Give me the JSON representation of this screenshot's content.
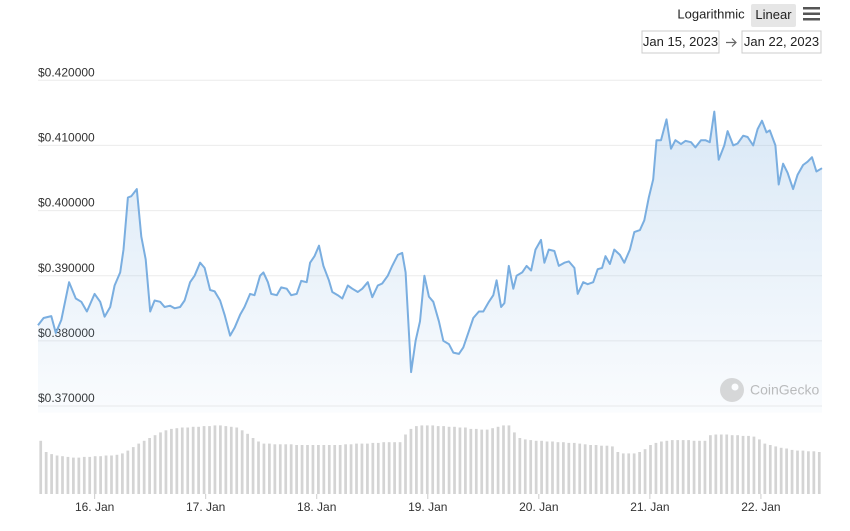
{
  "controls": {
    "scale_options": [
      "Logarithmic",
      "Linear"
    ],
    "selected_scale": "Linear",
    "date_from": "Jan 15, 2023",
    "date_to": "Jan 22, 2023"
  },
  "watermark": "CoinGecko",
  "chart_data": {
    "type": "line",
    "fill": true,
    "color": "#7aaee0",
    "grid": true,
    "xlim": [
      15.49,
      22.55
    ],
    "xticks": [
      {
        "value": 16,
        "label": "16. Jan"
      },
      {
        "value": 17,
        "label": "17. Jan"
      },
      {
        "value": 18,
        "label": "18. Jan"
      },
      {
        "value": 19,
        "label": "19. Jan"
      },
      {
        "value": 20,
        "label": "20. Jan"
      },
      {
        "value": 21,
        "label": "21. Jan"
      },
      {
        "value": 22,
        "label": "22. Jan"
      }
    ],
    "ylim": [
      0.369,
      0.4225
    ],
    "yticks": [
      {
        "value": 0.42,
        "label": "$0.420000"
      },
      {
        "value": 0.41,
        "label": "$0.410000"
      },
      {
        "value": 0.4,
        "label": "$0.400000"
      },
      {
        "value": 0.39,
        "label": "$0.390000"
      },
      {
        "value": 0.38,
        "label": "$0.380000"
      },
      {
        "value": 0.37,
        "label": "$0.370000"
      }
    ],
    "x": [
      15.49,
      15.54,
      15.61,
      15.65,
      15.7,
      15.77,
      15.83,
      15.88,
      15.93,
      16.0,
      16.05,
      16.09,
      16.14,
      16.18,
      16.23,
      16.26,
      16.3,
      16.33,
      16.38,
      16.42,
      16.46,
      16.5,
      16.54,
      16.59,
      16.63,
      16.68,
      16.72,
      16.77,
      16.81,
      16.86,
      16.9,
      16.95,
      16.99,
      17.04,
      17.08,
      17.13,
      17.17,
      17.22,
      17.26,
      17.31,
      17.35,
      17.4,
      17.44,
      17.49,
      17.52,
      17.56,
      17.59,
      17.64,
      17.68,
      17.73,
      17.77,
      17.82,
      17.86,
      17.91,
      17.94,
      17.98,
      18.02,
      18.06,
      18.11,
      18.14,
      18.19,
      18.23,
      18.28,
      18.32,
      18.37,
      18.41,
      18.46,
      18.5,
      18.55,
      18.59,
      18.64,
      18.68,
      18.73,
      18.77,
      18.8,
      18.85,
      18.89,
      18.93,
      18.97,
      19.01,
      19.05,
      19.1,
      19.14,
      19.19,
      19.23,
      19.28,
      19.32,
      19.37,
      19.41,
      19.46,
      19.5,
      19.55,
      19.59,
      19.62,
      19.66,
      19.69,
      19.73,
      19.77,
      19.8,
      19.85,
      19.89,
      19.93,
      19.97,
      20.02,
      20.05,
      20.09,
      20.14,
      20.18,
      20.23,
      20.27,
      20.32,
      20.35,
      20.4,
      20.44,
      20.49,
      20.53,
      20.57,
      20.6,
      20.64,
      20.68,
      20.73,
      20.77,
      20.82,
      20.86,
      20.91,
      20.95,
      20.99,
      21.03,
      21.06,
      21.1,
      21.15,
      21.19,
      21.23,
      21.28,
      21.32,
      21.37,
      21.41,
      21.46,
      21.5,
      21.54,
      21.58,
      21.62,
      21.67,
      21.7,
      21.75,
      21.79,
      21.84,
      21.88,
      21.93,
      21.97,
      22.01,
      22.05,
      22.08,
      22.13,
      22.16,
      22.2,
      22.24,
      22.29,
      22.33,
      22.38,
      22.42,
      22.46,
      22.5,
      22.55
    ],
    "values": [
      0.3824,
      0.3835,
      0.3838,
      0.3812,
      0.3832,
      0.389,
      0.3865,
      0.386,
      0.3845,
      0.3872,
      0.386,
      0.3837,
      0.3852,
      0.3885,
      0.3905,
      0.394,
      0.402,
      0.4022,
      0.4033,
      0.396,
      0.3925,
      0.3845,
      0.3862,
      0.386,
      0.3852,
      0.3854,
      0.385,
      0.3852,
      0.3862,
      0.389,
      0.39,
      0.392,
      0.3912,
      0.3878,
      0.3876,
      0.3862,
      0.384,
      0.3808,
      0.382,
      0.384,
      0.3852,
      0.3872,
      0.387,
      0.39,
      0.3905,
      0.389,
      0.3872,
      0.387,
      0.3882,
      0.388,
      0.387,
      0.3872,
      0.3892,
      0.389,
      0.392,
      0.393,
      0.3946,
      0.3915,
      0.3893,
      0.3875,
      0.387,
      0.3865,
      0.3885,
      0.388,
      0.3875,
      0.388,
      0.389,
      0.3867,
      0.3885,
      0.3888,
      0.39,
      0.3915,
      0.3932,
      0.3935,
      0.3905,
      0.3752,
      0.38,
      0.383,
      0.39,
      0.3868,
      0.386,
      0.383,
      0.38,
      0.3795,
      0.3782,
      0.378,
      0.379,
      0.3815,
      0.3835,
      0.3845,
      0.3845,
      0.386,
      0.387,
      0.3893,
      0.3852,
      0.3858,
      0.3915,
      0.388,
      0.39,
      0.3905,
      0.3915,
      0.3908,
      0.394,
      0.3955,
      0.392,
      0.394,
      0.3938,
      0.3915,
      0.392,
      0.3922,
      0.3912,
      0.3872,
      0.389,
      0.3887,
      0.389,
      0.391,
      0.3912,
      0.393,
      0.3918,
      0.394,
      0.3932,
      0.392,
      0.394,
      0.3967,
      0.397,
      0.3985,
      0.402,
      0.4048,
      0.4108,
      0.4108,
      0.414,
      0.4095,
      0.4108,
      0.4102,
      0.4107,
      0.4105,
      0.4097,
      0.4108,
      0.4108,
      0.4105,
      0.4152,
      0.4078,
      0.41,
      0.4122,
      0.41,
      0.4103,
      0.4115,
      0.4113,
      0.41,
      0.4125,
      0.4138,
      0.412,
      0.4123,
      0.41,
      0.404,
      0.4072,
      0.4058,
      0.4033,
      0.4055,
      0.407,
      0.4075,
      0.4082,
      0.406,
      0.4065
    ],
    "volume": {
      "color": "#d4d4d4",
      "ylim": [
        0,
        100
      ],
      "values": [
        76,
        60,
        57,
        55,
        54,
        53,
        52,
        52,
        53,
        53,
        54,
        54,
        55,
        55,
        56,
        58,
        62,
        67,
        72,
        76,
        80,
        84,
        88,
        91,
        93,
        94,
        95,
        95,
        96,
        96,
        97,
        97,
        98,
        98,
        97,
        96,
        95,
        91,
        86,
        80,
        75,
        72,
        72,
        71,
        71,
        71,
        71,
        70,
        70,
        70,
        70,
        70,
        70,
        70,
        70,
        70,
        71,
        71,
        72,
        72,
        72,
        73,
        73,
        74,
        74,
        74,
        74,
        85,
        93,
        97,
        98,
        98,
        98,
        97,
        97,
        96,
        96,
        95,
        95,
        93,
        93,
        92,
        92,
        94,
        96,
        98,
        98,
        88,
        80,
        78,
        77,
        76,
        76,
        75,
        75,
        74,
        74,
        73,
        73,
        72,
        71,
        70,
        70,
        69,
        69,
        68,
        60,
        58,
        58,
        58,
        60,
        64,
        70,
        73,
        75,
        76,
        77,
        77,
        77,
        77,
        76,
        76,
        76,
        84,
        85,
        85,
        85,
        84,
        84,
        83,
        83,
        82,
        78,
        72,
        70,
        68,
        66,
        65,
        63,
        62,
        62,
        61,
        61,
        60
      ]
    }
  }
}
